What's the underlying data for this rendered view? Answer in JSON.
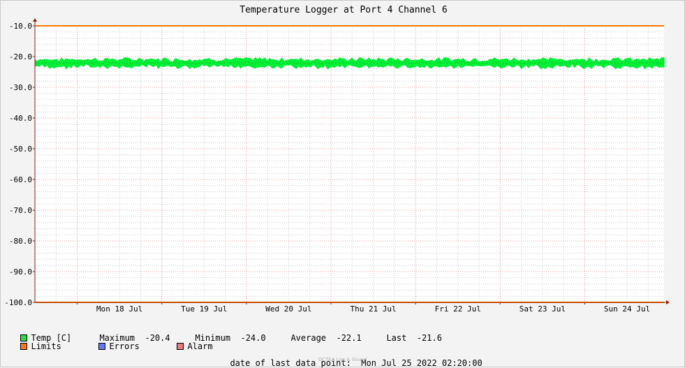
{
  "chart_data": {
    "type": "line",
    "title": "Temperature Logger at Port 4 Channel 6",
    "ylim": [
      -100,
      -10
    ],
    "yticks": [
      "-10.0",
      "-20.0",
      "-30.0",
      "-40.0",
      "-50.0",
      "-60.0",
      "-70.0",
      "-80.0",
      "-90.0",
      "-100.0"
    ],
    "xlim": [
      "2022-07-17 12:00",
      "2022-07-24 22:30"
    ],
    "xticks": [
      {
        "label": "Mon 18 Jul",
        "at": "2022-07-18"
      },
      {
        "label": "Tue 19 Jul",
        "at": "2022-07-19"
      },
      {
        "label": "Wed 20 Jul",
        "at": "2022-07-20"
      },
      {
        "label": "Thu 21 Jul",
        "at": "2022-07-21"
      },
      {
        "label": "Fri 22 Jul",
        "at": "2022-07-22"
      },
      {
        "label": "Sat 23 Jul",
        "at": "2022-07-23"
      },
      {
        "label": "Sun 24 Jul",
        "at": "2022-07-24"
      }
    ],
    "grid": true,
    "limits": {
      "upper": -10.0,
      "lower": -100.0
    },
    "series": [
      {
        "name": "Temp [C]",
        "color": "#00ee33",
        "x": [
          "2022-07-17 12:00",
          "2022-07-24 22:30"
        ],
        "values": [
          -22.1,
          -22.1
        ],
        "band": [
          -24.0,
          -20.4
        ]
      }
    ],
    "colors": {
      "temp": "#22dd44",
      "limits": "#ff7700",
      "errors": "#6677ff",
      "alarm": "#ee7777",
      "grid": "#e6a0a0",
      "minor_grid": "#cccccc",
      "axis": "#882200"
    }
  },
  "legend": {
    "temp_label": "Temp [C]",
    "maximum_label": "Maximum",
    "maximum_value": "-20.4",
    "minimum_label": "Minimum",
    "minimum_value": "-24.0",
    "average_label": "Average",
    "average_value": "-22.1",
    "last_label": "Last",
    "last_value": "-21.6",
    "limits_label": "Limits",
    "errors_label": "Errors",
    "alarm_label": "Alarm"
  },
  "footer": {
    "date_label": "date of last data point:",
    "date_value": "Mon Jul 25 2022 02:20:00",
    "watermark": "OCTAX Log & Guard"
  }
}
